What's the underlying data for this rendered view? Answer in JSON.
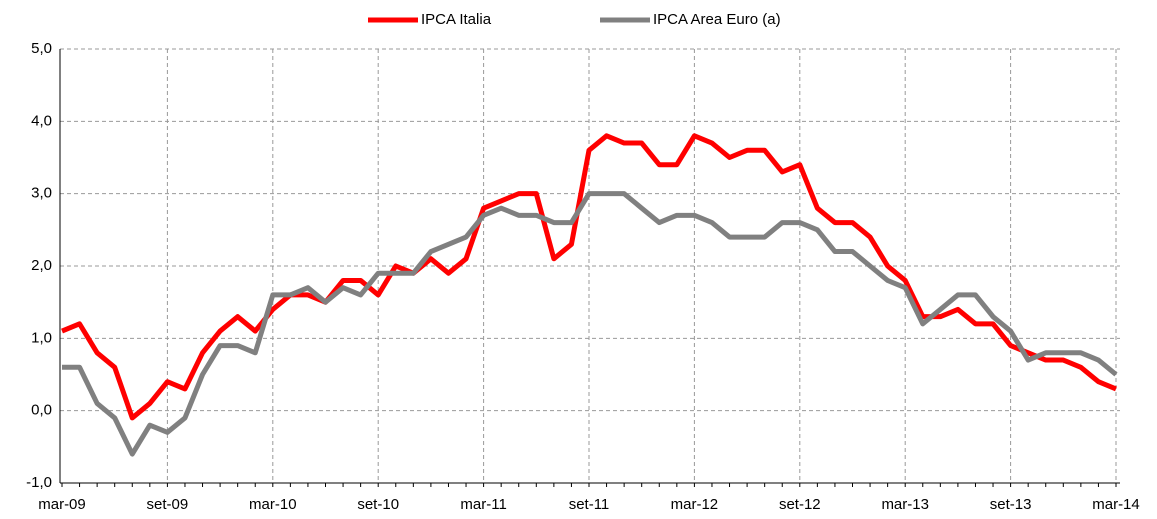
{
  "chart_data": {
    "type": "line",
    "categories": [
      "mar-09",
      null,
      null,
      null,
      null,
      null,
      "set-09",
      null,
      null,
      null,
      null,
      null,
      "mar-10",
      null,
      null,
      null,
      null,
      null,
      "set-10",
      null,
      null,
      null,
      null,
      null,
      "mar-11",
      null,
      null,
      null,
      null,
      null,
      "set-11",
      null,
      null,
      null,
      null,
      null,
      "mar-12",
      null,
      null,
      null,
      null,
      null,
      "set-12",
      null,
      null,
      null,
      null,
      null,
      "mar-13",
      null,
      null,
      null,
      null,
      null,
      "set-13",
      null,
      null,
      null,
      null,
      null,
      "mar-14"
    ],
    "series": [
      {
        "name": "IPCA Italia",
        "color": "#ff0000",
        "values": [
          1.1,
          1.2,
          0.8,
          0.6,
          -0.1,
          0.1,
          0.4,
          0.3,
          0.8,
          1.1,
          1.3,
          1.1,
          1.4,
          1.6,
          1.6,
          1.5,
          1.8,
          1.8,
          1.6,
          2.0,
          1.9,
          2.1,
          1.9,
          2.1,
          2.8,
          2.9,
          3.0,
          3.0,
          2.1,
          2.3,
          3.6,
          3.8,
          3.7,
          3.7,
          3.4,
          3.4,
          3.8,
          3.7,
          3.5,
          3.6,
          3.6,
          3.3,
          3.4,
          2.8,
          2.6,
          2.6,
          2.4,
          2.0,
          1.8,
          1.3,
          1.3,
          1.4,
          1.2,
          1.2,
          0.9,
          0.8,
          0.7,
          0.7,
          0.6,
          0.4,
          0.3
        ]
      },
      {
        "name": "IPCA Area Euro (a)",
        "color": "#808080",
        "values": [
          0.6,
          0.6,
          0.1,
          -0.1,
          -0.6,
          -0.2,
          -0.3,
          -0.1,
          0.5,
          0.9,
          0.9,
          0.8,
          1.6,
          1.6,
          1.7,
          1.5,
          1.7,
          1.6,
          1.9,
          1.9,
          1.9,
          2.2,
          2.3,
          2.4,
          2.7,
          2.8,
          2.7,
          2.7,
          2.6,
          2.6,
          3.0,
          3.0,
          3.0,
          2.8,
          2.6,
          2.7,
          2.7,
          2.6,
          2.4,
          2.4,
          2.4,
          2.6,
          2.6,
          2.5,
          2.2,
          2.2,
          2.0,
          1.8,
          1.7,
          1.2,
          1.4,
          1.6,
          1.6,
          1.3,
          1.1,
          0.7,
          0.8,
          0.8,
          0.8,
          0.7,
          0.5
        ]
      }
    ],
    "ylim": [
      -1,
      5
    ],
    "yticks": [
      {
        "value": -1,
        "label": "-1,0"
      },
      {
        "value": 0,
        "label": "0,0"
      },
      {
        "value": 1,
        "label": "1,0"
      },
      {
        "value": 2,
        "label": "2,0"
      },
      {
        "value": 3,
        "label": "3,0"
      },
      {
        "value": 4,
        "label": "4,0"
      },
      {
        "value": 5,
        "label": "5,0"
      }
    ],
    "grid": true,
    "legend": "top"
  }
}
